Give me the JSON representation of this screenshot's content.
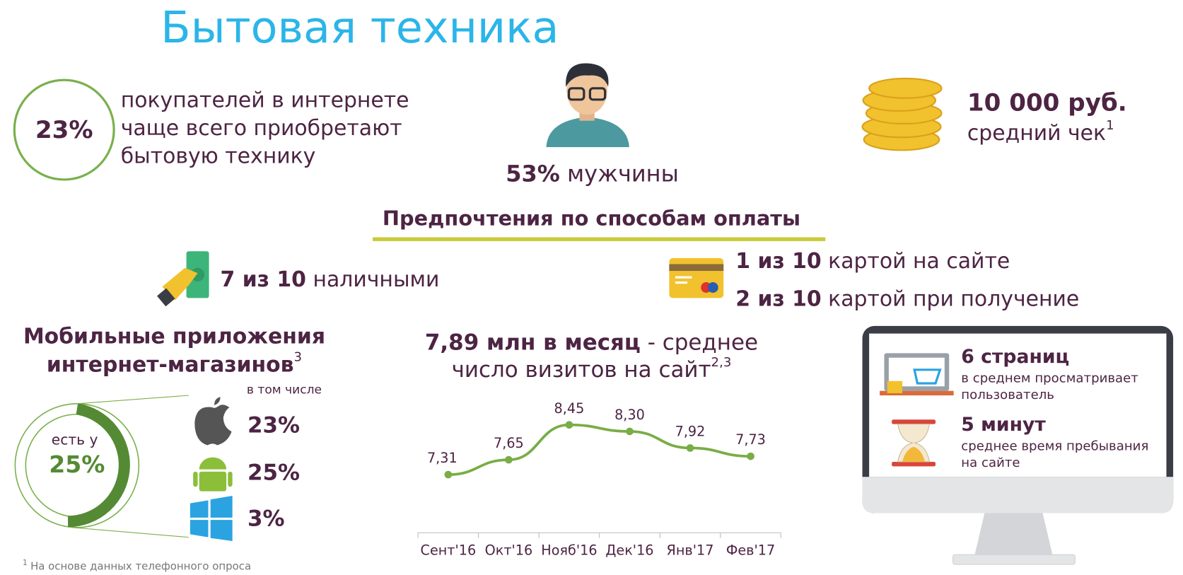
{
  "header": {
    "title": "Бытовая техника"
  },
  "buyers": {
    "value": "23%",
    "lines": [
      "покупателей в интернете",
      "чаще всего приобретают",
      "бытовую технику"
    ]
  },
  "men": {
    "value": "53%",
    "label": "мужчины"
  },
  "average_check": {
    "value": "10 000 руб.",
    "label": "средний чек",
    "note": "1"
  },
  "payment": {
    "title": "Предпочтения по способам оплаты",
    "items": [
      {
        "bold": "7 из 10",
        "text": "наличными"
      },
      {
        "bold": "1 из 10",
        "text": "картой на сайте"
      },
      {
        "bold": "2 из 10",
        "text": "картой при получение"
      }
    ]
  },
  "mobile": {
    "title": [
      "Мобильные приложения",
      "интернет-магазинов"
    ],
    "note": "3",
    "subtitle": "в том числе",
    "donut_label": "есть у",
    "donut_value": "25%",
    "platforms": [
      "23%",
      "25%",
      "3%"
    ]
  },
  "visits": {
    "bold": "7,89 млн в месяц",
    "text": "- среднее",
    "line2": "число визитов на сайт",
    "note": "2,3"
  },
  "chart_data": {
    "type": "line",
    "categories": [
      "Сент'16",
      "Окт'16",
      "Нояб'16",
      "Дек'16",
      "Янв'17",
      "Фев'17"
    ],
    "values": [
      7.31,
      7.65,
      8.45,
      8.3,
      7.92,
      7.73
    ],
    "value_labels": [
      "7,31",
      "7,65",
      "8,45",
      "8,30",
      "7,92",
      "7,73"
    ],
    "color": "#79ad45"
  },
  "monitor": {
    "pages": {
      "bold": "6 страниц",
      "lines": [
        "в среднем просматривает",
        "пользователь"
      ]
    },
    "time": {
      "bold": "5 минут",
      "lines": [
        "среднее время пребывания",
        "на сайте"
      ]
    }
  },
  "footnote": {
    "note": "1",
    "text": "На основе данных телефонного опроса"
  }
}
